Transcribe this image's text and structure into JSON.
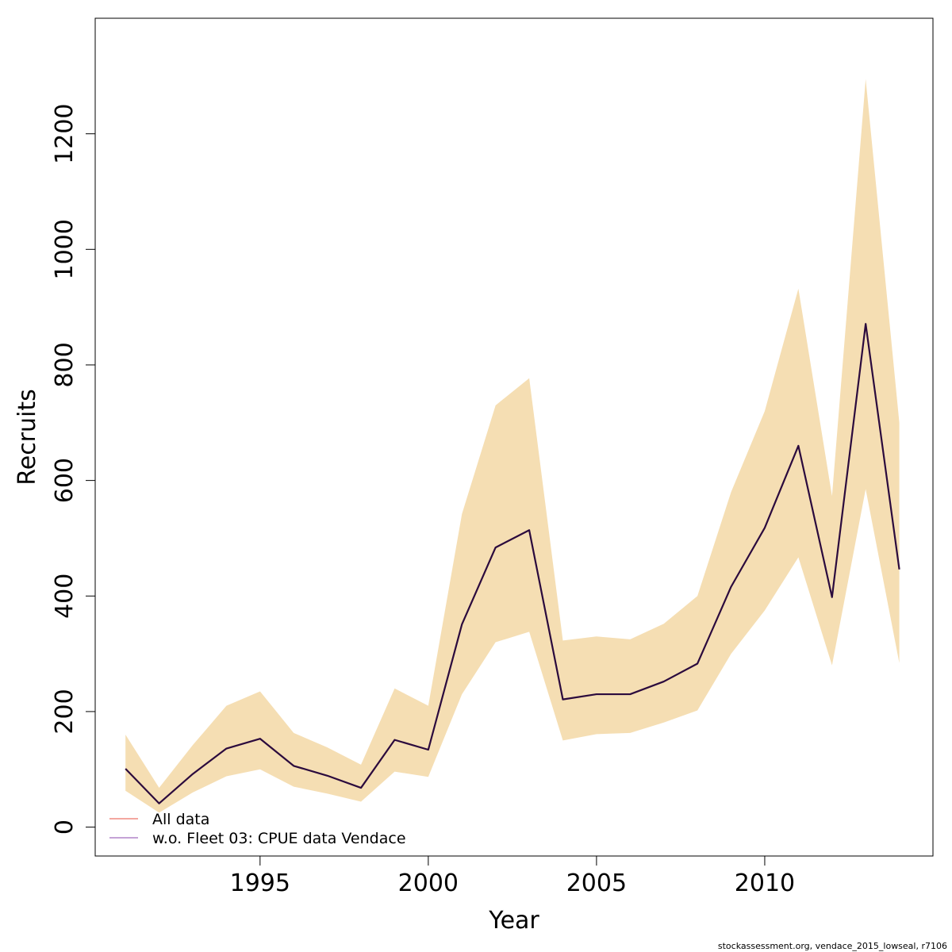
{
  "chart_data": {
    "type": "area",
    "title": "",
    "xlabel": "Year",
    "ylabel": "Recruits",
    "xlim": [
      1990.1,
      2015.0
    ],
    "ylim": [
      -50,
      1400
    ],
    "x_ticks": [
      1995,
      2000,
      2005,
      2010
    ],
    "x_tick_labels": [
      "1995",
      "2000",
      "2005",
      "2010"
    ],
    "y_ticks": [
      0,
      200,
      400,
      600,
      800,
      1000,
      1200
    ],
    "y_tick_labels": [
      "0",
      "200",
      "400",
      "600",
      "800",
      "1000",
      "1200"
    ],
    "grid": false,
    "legend_position": "bottom-left",
    "years": [
      1991,
      1992,
      1993,
      1994,
      1995,
      1996,
      1997,
      1998,
      1999,
      2000,
      2001,
      2002,
      2003,
      2004,
      2005,
      2006,
      2007,
      2008,
      2009,
      2010,
      2011,
      2012,
      2013,
      2014
    ],
    "band": {
      "color": "#f5deb3",
      "upper": [
        160,
        68,
        142,
        210,
        235,
        163,
        138,
        108,
        240,
        210,
        542,
        730,
        777,
        323,
        330,
        325,
        352,
        400,
        580,
        720,
        932,
        573,
        1295,
        700
      ],
      "lower": [
        63,
        25,
        60,
        88,
        100,
        70,
        58,
        44,
        96,
        87,
        230,
        320,
        338,
        150,
        161,
        163,
        181,
        202,
        300,
        375,
        467,
        280,
        585,
        284
      ]
    },
    "series": [
      {
        "name": "w.o. Fleet 03:  CPUE data Vendace",
        "color": "#2b0a3d",
        "values": [
          101,
          41,
          92,
          136,
          153,
          106,
          89,
          68,
          151,
          134,
          351,
          484,
          514,
          221,
          230,
          230,
          252,
          283,
          416,
          518,
          660,
          398,
          871,
          446
        ]
      }
    ],
    "legend": [
      {
        "label": "All data",
        "color": "#f4a7a0"
      },
      {
        "label": "w.o. Fleet 03:  CPUE data Vendace",
        "color": "#c4a3d6"
      }
    ],
    "footnote": "stockassessment.org, vendace_2015_lowseal, r7106"
  }
}
